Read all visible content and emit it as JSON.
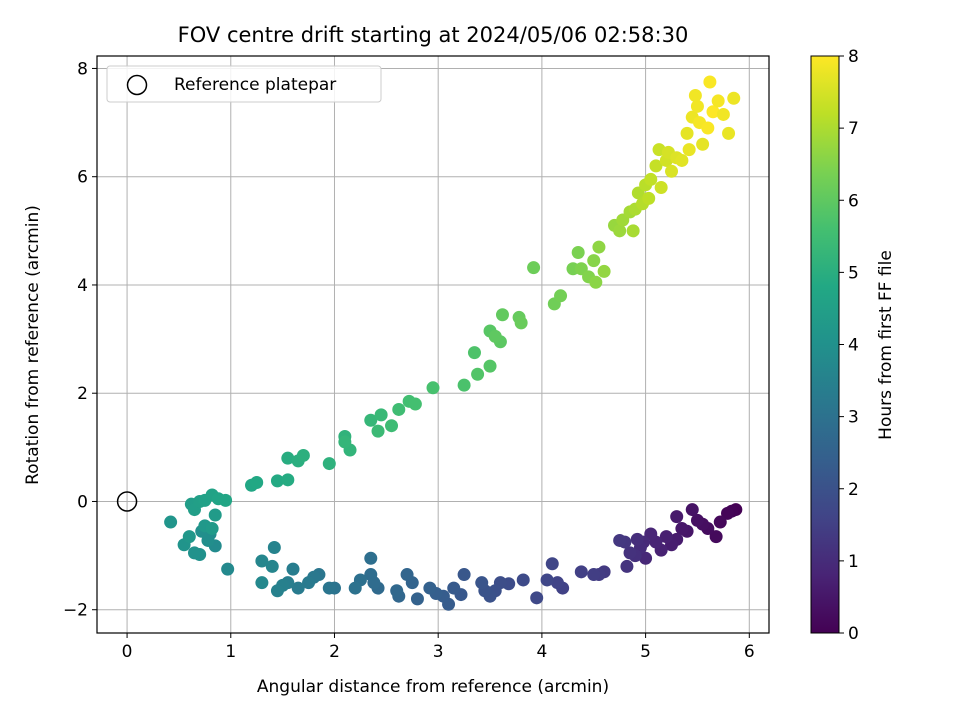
{
  "chart_data": {
    "type": "scatter",
    "title": "FOV centre drift starting at 2024/05/06 02:58:30",
    "xlabel": "Angular distance from reference (arcmin)",
    "ylabel": "Rotation from reference (arcmin)",
    "xlim": [
      -0.29,
      6.19
    ],
    "ylim": [
      -2.43,
      8.23
    ],
    "xticks": [
      "0",
      "1",
      "2",
      "3",
      "4",
      "5",
      "6"
    ],
    "yticks": [
      "−2",
      "0",
      "2",
      "4",
      "6",
      "8"
    ],
    "grid": true,
    "legend": {
      "placement": "top-left",
      "entries": [
        "Reference platepar"
      ]
    },
    "reference_point": {
      "x": 0,
      "y": 0,
      "marker": "open-circle",
      "label": "Reference platepar"
    },
    "colorbar": {
      "label": "Hours from first FF file",
      "range": [
        0,
        8
      ],
      "ticks": [
        "0",
        "1",
        "2",
        "3",
        "4",
        "5",
        "6",
        "7",
        "8"
      ],
      "colormap": [
        "#440154",
        "#482475",
        "#414487",
        "#355f8d",
        "#2a788e",
        "#21918c",
        "#22a884",
        "#44bf70",
        "#7ad151",
        "#bddf26",
        "#fde725"
      ]
    },
    "series": [
      {
        "points": [
          [
            5.87,
            -0.15,
            0.0
          ],
          [
            5.83,
            -0.18,
            0.05
          ],
          [
            5.79,
            -0.22,
            0.1
          ],
          [
            5.72,
            -0.38,
            0.15
          ],
          [
            5.68,
            -0.65,
            0.2
          ],
          [
            5.6,
            -0.5,
            0.25
          ],
          [
            5.55,
            -0.42,
            0.3
          ],
          [
            5.5,
            -0.35,
            0.35
          ],
          [
            5.45,
            -0.15,
            0.4
          ],
          [
            5.4,
            -0.55,
            0.45
          ],
          [
            5.35,
            -0.5,
            0.5
          ],
          [
            5.3,
            -0.28,
            0.55
          ],
          [
            5.3,
            -0.7,
            0.6
          ],
          [
            5.25,
            -0.8,
            0.65
          ],
          [
            5.2,
            -0.65,
            0.7
          ],
          [
            5.15,
            -0.9,
            0.75
          ],
          [
            5.1,
            -0.75,
            0.8
          ],
          [
            5.05,
            -0.6,
            0.85
          ],
          [
            5.0,
            -1.05,
            0.9
          ],
          [
            4.98,
            -0.75,
            0.95
          ],
          [
            4.95,
            -0.85,
            1.0
          ],
          [
            4.92,
            -0.7,
            1.05
          ],
          [
            4.9,
            -1.0,
            1.1
          ],
          [
            4.85,
            -0.95,
            1.15
          ],
          [
            4.82,
            -1.2,
            1.2
          ],
          [
            4.8,
            -0.75,
            1.25
          ],
          [
            4.75,
            -0.72,
            1.3
          ],
          [
            4.6,
            -1.3,
            1.35
          ],
          [
            4.55,
            -1.35,
            1.4
          ],
          [
            4.5,
            -1.35,
            1.45
          ],
          [
            4.38,
            -1.3,
            1.5
          ],
          [
            4.2,
            -1.6,
            1.55
          ],
          [
            4.15,
            -1.5,
            1.6
          ],
          [
            4.1,
            -1.15,
            1.65
          ],
          [
            4.05,
            -1.45,
            1.7
          ],
          [
            3.95,
            -1.78,
            1.75
          ],
          [
            3.82,
            -1.45,
            1.8
          ],
          [
            3.68,
            -1.52,
            1.85
          ],
          [
            3.6,
            -1.5,
            1.9
          ],
          [
            3.55,
            -1.65,
            1.95
          ],
          [
            3.5,
            -1.75,
            2.0
          ],
          [
            3.45,
            -1.65,
            2.05
          ],
          [
            3.42,
            -1.5,
            2.1
          ],
          [
            3.25,
            -1.35,
            2.15
          ],
          [
            3.22,
            -1.72,
            2.2
          ],
          [
            3.15,
            -1.6,
            2.25
          ],
          [
            3.1,
            -1.9,
            2.3
          ],
          [
            3.05,
            -1.75,
            2.35
          ],
          [
            2.98,
            -1.7,
            2.4
          ],
          [
            2.92,
            -1.6,
            2.45
          ],
          [
            2.8,
            -1.8,
            2.5
          ],
          [
            2.75,
            -1.5,
            2.55
          ],
          [
            2.7,
            -1.35,
            2.6
          ],
          [
            2.62,
            -1.75,
            2.65
          ],
          [
            2.6,
            -1.65,
            2.7
          ],
          [
            2.42,
            -1.6,
            2.75
          ],
          [
            2.38,
            -1.5,
            2.8
          ],
          [
            2.35,
            -1.35,
            2.85
          ],
          [
            2.35,
            -1.05,
            2.9
          ],
          [
            2.25,
            -1.45,
            2.95
          ],
          [
            2.2,
            -1.6,
            3.0
          ],
          [
            2.0,
            -1.6,
            3.05
          ],
          [
            1.95,
            -1.6,
            3.1
          ],
          [
            1.85,
            -1.35,
            3.15
          ],
          [
            1.8,
            -1.4,
            3.2
          ],
          [
            1.75,
            -1.5,
            3.25
          ],
          [
            1.65,
            -1.6,
            3.3
          ],
          [
            1.6,
            -1.25,
            3.35
          ],
          [
            1.55,
            -1.5,
            3.4
          ],
          [
            1.5,
            -1.55,
            3.45
          ],
          [
            1.45,
            -1.65,
            3.5
          ],
          [
            1.42,
            -0.85,
            3.55
          ],
          [
            1.4,
            -1.2,
            3.6
          ],
          [
            1.3,
            -1.1,
            3.65
          ],
          [
            1.3,
            -1.5,
            3.7
          ],
          [
            0.97,
            -1.25,
            3.75
          ],
          [
            0.85,
            -0.82,
            3.8
          ],
          [
            0.8,
            -0.6,
            3.85
          ],
          [
            0.78,
            -0.72,
            3.9
          ],
          [
            0.72,
            -0.55,
            3.95
          ],
          [
            0.7,
            -0.98,
            4.0
          ],
          [
            0.65,
            -0.95,
            4.05
          ],
          [
            0.55,
            -0.8,
            4.1
          ],
          [
            0.42,
            -0.38,
            4.15
          ],
          [
            0.6,
            -0.65,
            4.2
          ],
          [
            0.75,
            -0.45,
            4.25
          ],
          [
            0.82,
            -0.5,
            4.3
          ],
          [
            0.85,
            -0.25,
            4.35
          ],
          [
            0.62,
            -0.05,
            4.4
          ],
          [
            0.65,
            -0.15,
            4.45
          ],
          [
            0.7,
            0.0,
            4.5
          ],
          [
            0.75,
            0.02,
            4.55
          ],
          [
            0.82,
            0.12,
            4.6
          ],
          [
            0.88,
            0.05,
            4.65
          ],
          [
            0.95,
            0.02,
            4.7
          ],
          [
            1.2,
            0.3,
            4.75
          ],
          [
            1.25,
            0.35,
            4.8
          ],
          [
            1.45,
            0.38,
            4.85
          ],
          [
            1.55,
            0.4,
            4.9
          ],
          [
            1.55,
            0.8,
            4.95
          ],
          [
            1.65,
            0.75,
            5.0
          ],
          [
            1.7,
            0.85,
            5.05
          ],
          [
            1.95,
            0.7,
            5.1
          ],
          [
            2.1,
            1.2,
            5.15
          ],
          [
            2.15,
            0.95,
            5.2
          ],
          [
            2.1,
            1.1,
            5.25
          ],
          [
            2.35,
            1.5,
            5.3
          ],
          [
            2.45,
            1.6,
            5.35
          ],
          [
            2.42,
            1.3,
            5.4
          ],
          [
            2.55,
            1.4,
            5.45
          ],
          [
            2.62,
            1.7,
            5.5
          ],
          [
            2.72,
            1.85,
            5.55
          ],
          [
            2.78,
            1.8,
            5.6
          ],
          [
            2.95,
            2.1,
            5.65
          ],
          [
            3.25,
            2.15,
            5.7
          ],
          [
            3.35,
            2.75,
            5.75
          ],
          [
            3.38,
            2.35,
            5.8
          ],
          [
            3.5,
            2.5,
            5.85
          ],
          [
            3.5,
            3.15,
            5.9
          ],
          [
            3.6,
            2.95,
            5.95
          ],
          [
            3.55,
            3.05,
            6.0
          ],
          [
            3.62,
            3.45,
            6.05
          ],
          [
            3.78,
            3.4,
            6.1
          ],
          [
            3.8,
            3.3,
            6.15
          ],
          [
            3.92,
            4.32,
            6.2
          ],
          [
            4.12,
            3.65,
            6.25
          ],
          [
            4.18,
            3.8,
            6.3
          ],
          [
            4.3,
            4.3,
            6.35
          ],
          [
            4.35,
            4.6,
            6.4
          ],
          [
            4.38,
            4.3,
            6.45
          ],
          [
            4.45,
            4.15,
            6.5
          ],
          [
            4.5,
            4.45,
            6.55
          ],
          [
            4.52,
            4.05,
            6.6
          ],
          [
            4.55,
            4.7,
            6.65
          ],
          [
            4.6,
            4.25,
            6.7
          ],
          [
            4.7,
            5.1,
            6.75
          ],
          [
            4.75,
            5.0,
            6.8
          ],
          [
            4.78,
            5.2,
            6.85
          ],
          [
            4.85,
            5.35,
            6.9
          ],
          [
            4.88,
            5.0,
            6.95
          ],
          [
            4.9,
            5.4,
            7.0
          ],
          [
            4.93,
            5.7,
            7.05
          ],
          [
            4.97,
            5.5,
            7.1
          ],
          [
            5.0,
            5.85,
            7.15
          ],
          [
            5.03,
            5.6,
            7.2
          ],
          [
            5.05,
            5.95,
            7.25
          ],
          [
            5.1,
            6.2,
            7.3
          ],
          [
            5.13,
            6.5,
            7.35
          ],
          [
            5.15,
            5.8,
            7.4
          ],
          [
            5.2,
            6.3,
            7.45
          ],
          [
            5.22,
            6.45,
            7.5
          ],
          [
            5.25,
            6.1,
            7.55
          ],
          [
            5.3,
            6.35,
            7.6
          ],
          [
            5.35,
            6.3,
            7.65
          ],
          [
            5.4,
            6.8,
            7.7
          ],
          [
            5.42,
            6.5,
            7.75
          ],
          [
            5.45,
            7.1,
            7.8
          ],
          [
            5.5,
            7.3,
            7.85
          ],
          [
            5.52,
            7.0,
            7.9
          ],
          [
            5.6,
            6.9,
            7.95
          ],
          [
            5.65,
            7.2,
            8.0
          ],
          [
            5.7,
            7.4,
            7.9
          ],
          [
            5.75,
            7.15,
            7.85
          ],
          [
            5.85,
            7.45,
            7.8
          ],
          [
            5.8,
            6.8,
            7.75
          ],
          [
            5.62,
            7.75,
            7.95
          ],
          [
            5.48,
            7.5,
            7.85
          ],
          [
            5.55,
            6.6,
            7.7
          ]
        ]
      }
    ]
  }
}
